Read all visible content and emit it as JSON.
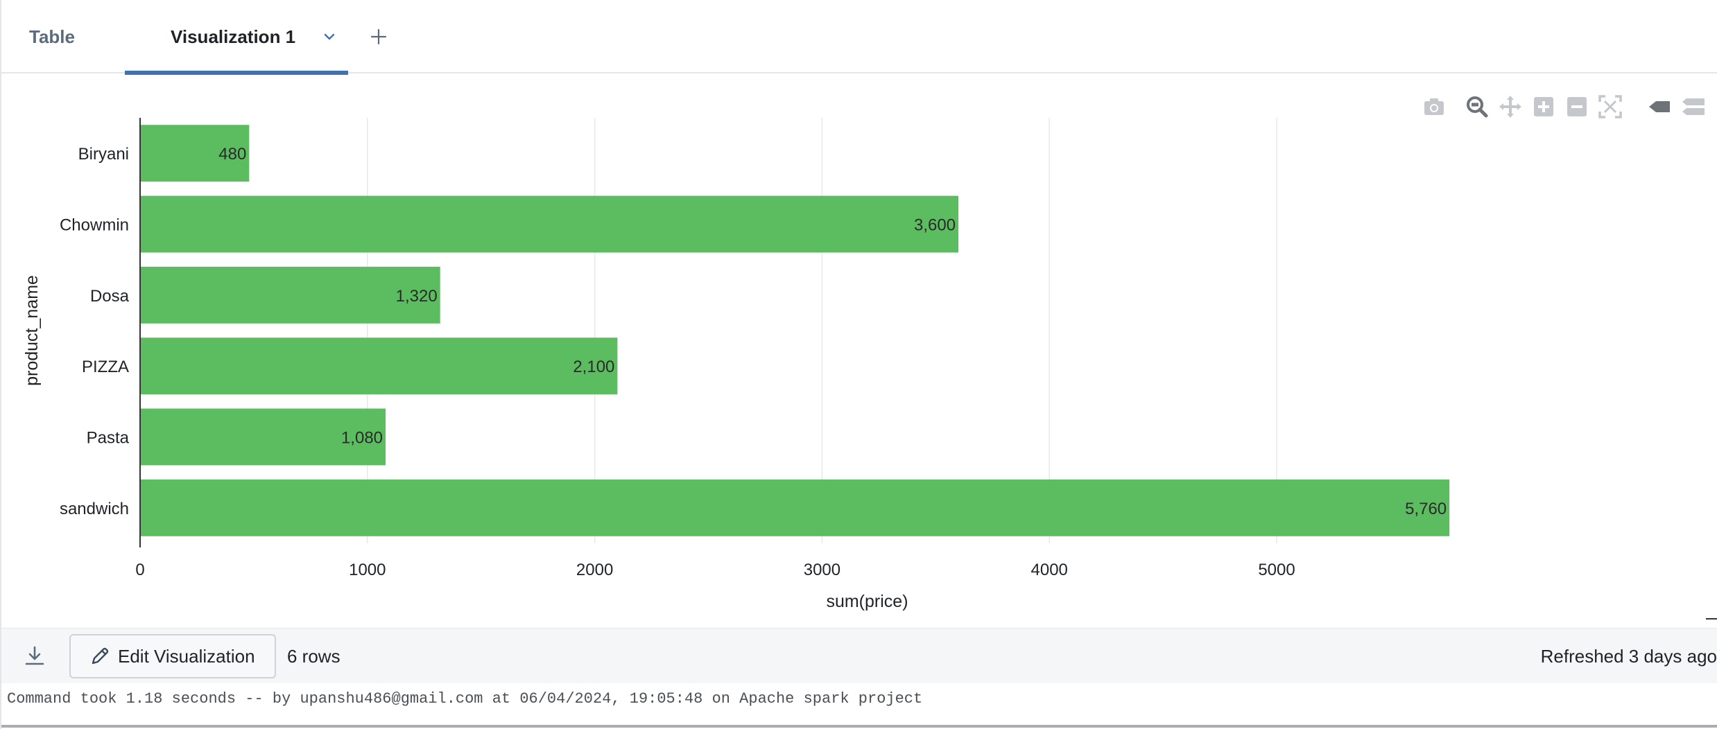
{
  "tabs": {
    "table_label": "Table",
    "viz_label": "Visualization 1",
    "add_label": "+"
  },
  "modebar": {
    "icons": [
      "camera-icon",
      "zoom-icon",
      "pan-icon",
      "zoom-in-icon",
      "zoom-out-icon",
      "autoscale-icon",
      "hover-closest-icon",
      "hover-compare-icon"
    ]
  },
  "chart_data": {
    "type": "bar",
    "orientation": "horizontal",
    "categories": [
      "Biryani",
      "Chowmin",
      "Dosa",
      "PIZZA",
      "Pasta",
      "sandwich"
    ],
    "values": [
      480,
      3600,
      1320,
      2100,
      1080,
      5760
    ],
    "data_labels": [
      "480",
      "3,600",
      "1,320",
      "2,100",
      "1,080",
      "5,760"
    ],
    "xlabel": "sum(price)",
    "ylabel": "product_name",
    "xlim": [
      0,
      5970
    ],
    "xticks": [
      0,
      1000,
      2000,
      3000,
      4000,
      5000
    ],
    "grid": true,
    "bar_color": "#5bbd5f"
  },
  "footer": {
    "edit_label": "Edit Visualization",
    "rows_text": "6 rows",
    "refreshed_text": "Refreshed 3 days ago"
  },
  "command_text": "Command took 1.18 seconds -- by upanshu486@gmail.com at 06/04/2024, 19:05:48 on Apache spark project",
  "colors": {
    "accent": "#3f72af",
    "bar": "#5bbd5f"
  }
}
